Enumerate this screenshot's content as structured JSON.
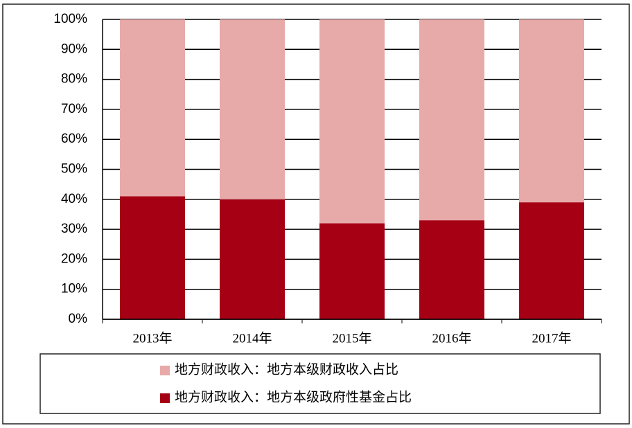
{
  "chart_data": {
    "type": "stacked_bar",
    "categories": [
      "2013年",
      "2014年",
      "2015年",
      "2016年",
      "2017年"
    ],
    "series": [
      {
        "name": "地方财政收入：地方本级财政收入占比",
        "color": "#e8a9a9",
        "values": [
          59,
          60,
          68,
          67,
          61
        ]
      },
      {
        "name": "地方财政收入：地方本级政府性基金占比",
        "color": "#a50014",
        "values": [
          41,
          40,
          32,
          33,
          39
        ]
      }
    ],
    "ylim": [
      0,
      100
    ],
    "yticks": [
      {
        "value": 0,
        "label": "0%"
      },
      {
        "value": 10,
        "label": "10%"
      },
      {
        "value": 20,
        "label": "20%"
      },
      {
        "value": 30,
        "label": "30%"
      },
      {
        "value": 40,
        "label": "40%"
      },
      {
        "value": 50,
        "label": "50%"
      },
      {
        "value": 60,
        "label": "60%"
      },
      {
        "value": 70,
        "label": "70%"
      },
      {
        "value": 80,
        "label": "80%"
      },
      {
        "value": 90,
        "label": "90%"
      },
      {
        "value": 100,
        "label": "100%"
      }
    ],
    "grid": true
  }
}
